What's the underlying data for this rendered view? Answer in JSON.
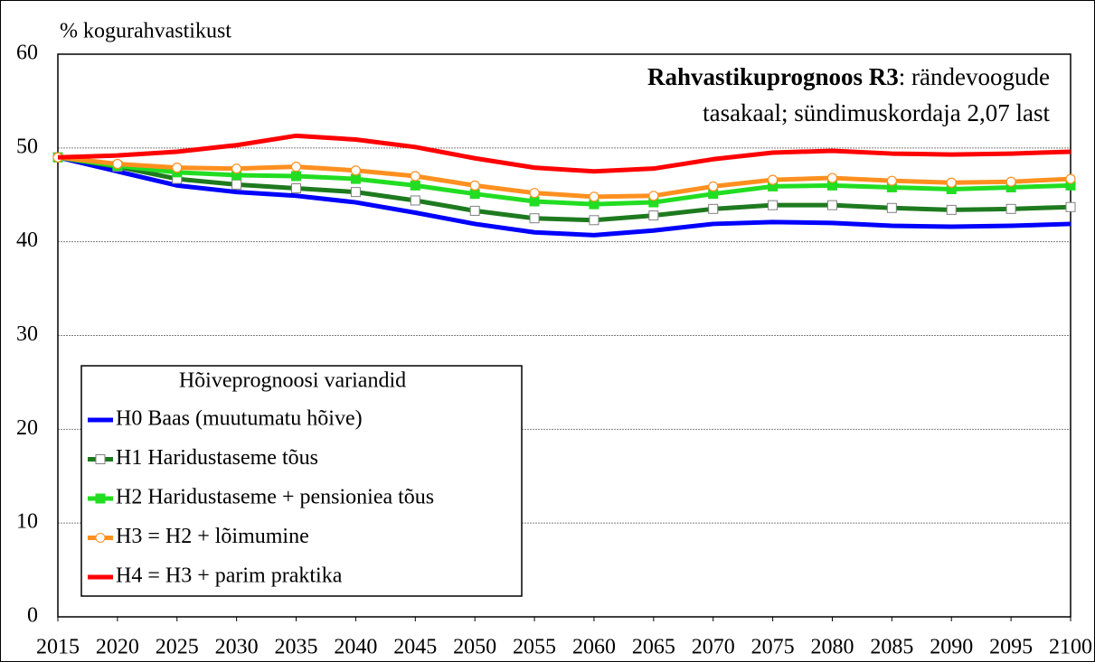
{
  "chart_data": {
    "type": "line",
    "title": [
      "Rahvastikuprognoos R3",
      ": rändevoogude",
      "tasakaal; sündimuskordaja 2,07 last"
    ],
    "y_label": "% kogurahvastikust",
    "legend_title": "Hõiveprognoosi variandid",
    "legend_position": "lower-left",
    "grid": true,
    "x": [
      2015,
      2020,
      2025,
      2030,
      2035,
      2040,
      2045,
      2050,
      2055,
      2060,
      2065,
      2070,
      2075,
      2080,
      2085,
      2090,
      2095,
      2100
    ],
    "xlim": [
      2015,
      2100
    ],
    "xticks": [
      2015,
      2020,
      2025,
      2030,
      2035,
      2040,
      2045,
      2050,
      2055,
      2060,
      2065,
      2070,
      2075,
      2080,
      2085,
      2090,
      2095,
      2100
    ],
    "ylim": [
      0,
      60
    ],
    "yticks": [
      0,
      10,
      20,
      30,
      40,
      50,
      60
    ],
    "series": [
      {
        "name": "H0 Baas (muutumatu hõive)",
        "color": "#0000ff",
        "marker": "none",
        "values": [
          49,
          47.5,
          46,
          45.3,
          44.9,
          44.2,
          43.1,
          41.9,
          41.0,
          40.7,
          41.2,
          41.9,
          42.1,
          42.0,
          41.7,
          41.6,
          41.7,
          41.9
        ]
      },
      {
        "name": "H1 Haridustaseme tõus",
        "color": "#1e7a1e",
        "marker": "square-open",
        "marker_color": "#808080",
        "values": [
          49,
          48.0,
          46.7,
          46.1,
          45.7,
          45.3,
          44.4,
          43.3,
          42.5,
          42.3,
          42.8,
          43.5,
          43.9,
          43.9,
          43.6,
          43.4,
          43.5,
          43.7
        ]
      },
      {
        "name": "H2 Haridustaseme + pensioniea tõus",
        "color": "#22dd22",
        "marker": "square",
        "marker_color": "#22dd22",
        "values": [
          49,
          48.1,
          47.4,
          47.1,
          47.0,
          46.7,
          46.0,
          45.1,
          44.3,
          44.0,
          44.2,
          45.1,
          45.9,
          46.0,
          45.8,
          45.6,
          45.8,
          46.0
        ]
      },
      {
        "name": "H3 = H2 + lõimumine",
        "color": "#ff9020",
        "marker": "circle-open",
        "marker_color": "#ff9020",
        "values": [
          49,
          48.3,
          47.9,
          47.8,
          48.0,
          47.6,
          47.0,
          46.0,
          45.2,
          44.8,
          44.9,
          45.9,
          46.6,
          46.8,
          46.5,
          46.3,
          46.4,
          46.7
        ]
      },
      {
        "name": "H4 = H3 + parim praktika",
        "color": "#ff0000",
        "marker": "none",
        "values": [
          49,
          49.2,
          49.6,
          50.3,
          51.3,
          50.9,
          50.1,
          48.9,
          47.9,
          47.5,
          47.8,
          48.8,
          49.5,
          49.7,
          49.4,
          49.3,
          49.4,
          49.6
        ]
      }
    ]
  }
}
